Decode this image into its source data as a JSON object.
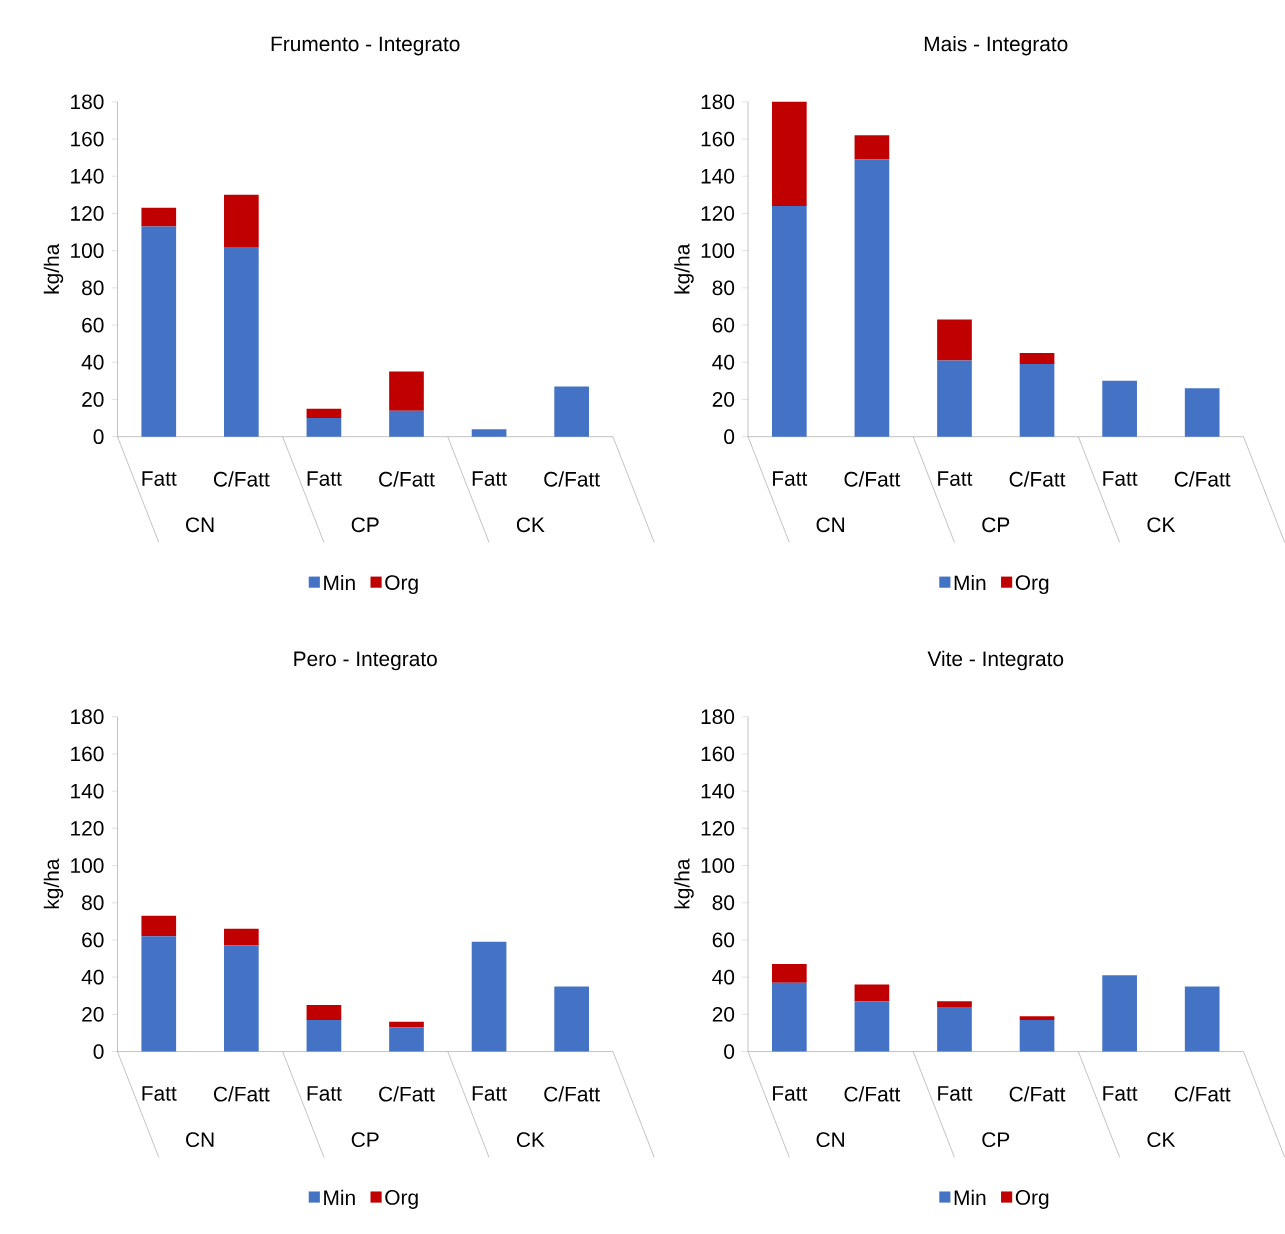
{
  "chart_data": [
    {
      "type": "bar",
      "title": "Frumento - Integrato",
      "ylabel": "kg/ha",
      "categories": [
        "Fatt",
        "C/Fatt",
        "Fatt",
        "C/Fatt",
        "Fatt",
        "C/Fatt"
      ],
      "stacked": true,
      "legend": "bottom",
      "ylim": [
        0,
        180
      ],
      "yticks": [
        0,
        20,
        40,
        60,
        80,
        100,
        120,
        140,
        160,
        180
      ],
      "annotations": [
        "CN",
        "CP",
        "CK"
      ],
      "series": [
        {
          "name": "Min",
          "color": "#4472c4",
          "values": [
            113,
            102,
            10,
            14,
            4,
            27
          ]
        },
        {
          "name": "Org",
          "color": "#c00000",
          "values": [
            10,
            28,
            5,
            21,
            null,
            null
          ]
        }
      ]
    },
    {
      "type": "bar",
      "title": "Mais - Integrato",
      "ylabel": "kg/ha",
      "categories": [
        "Fatt",
        "C/Fatt",
        "Fatt",
        "C/Fatt",
        "Fatt",
        "C/Fatt"
      ],
      "stacked": true,
      "legend": "bottom",
      "ylim": [
        0,
        180
      ],
      "yticks": [
        0,
        20,
        40,
        60,
        80,
        100,
        120,
        140,
        160,
        180
      ],
      "annotations": [
        "CN",
        "CP",
        "CK"
      ],
      "series": [
        {
          "name": "Min",
          "color": "#4472c4",
          "values": [
            124,
            149,
            41,
            39,
            30,
            26
          ]
        },
        {
          "name": "Org",
          "color": "#c00000",
          "values": [
            56,
            13,
            22,
            6,
            null,
            null
          ]
        }
      ]
    },
    {
      "type": "bar",
      "title": "Pero - Integrato",
      "ylabel": "kg/ha",
      "categories": [
        "Fatt",
        "C/Fatt",
        "Fatt",
        "C/Fatt",
        "Fatt",
        "C/Fatt"
      ],
      "stacked": true,
      "legend": "bottom",
      "ylim": [
        0,
        180
      ],
      "yticks": [
        0,
        20,
        40,
        60,
        80,
        100,
        120,
        140,
        160,
        180
      ],
      "annotations": [
        "CN",
        "CP",
        "CK"
      ],
      "series": [
        {
          "name": "Min",
          "color": "#4472c4",
          "values": [
            62,
            57,
            17,
            13,
            59,
            35
          ]
        },
        {
          "name": "Org",
          "color": "#c00000",
          "values": [
            11,
            9,
            8,
            3,
            null,
            null
          ]
        }
      ]
    },
    {
      "type": "bar",
      "title": "Vite - Integrato",
      "ylabel": "kg/ha",
      "categories": [
        "Fatt",
        "C/Fatt",
        "Fatt",
        "C/Fatt",
        "Fatt",
        "C/Fatt"
      ],
      "stacked": true,
      "legend": "bottom",
      "ylim": [
        0,
        180
      ],
      "yticks": [
        0,
        20,
        40,
        60,
        80,
        100,
        120,
        140,
        160,
        180
      ],
      "annotations": [
        "CN",
        "CP",
        "CK"
      ],
      "series": [
        {
          "name": "Min",
          "color": "#4472c4",
          "values": [
            37,
            27,
            24,
            17,
            41,
            35
          ]
        },
        {
          "name": "Org",
          "color": "#c00000",
          "values": [
            10,
            9,
            3,
            2,
            null,
            null
          ]
        }
      ]
    }
  ]
}
